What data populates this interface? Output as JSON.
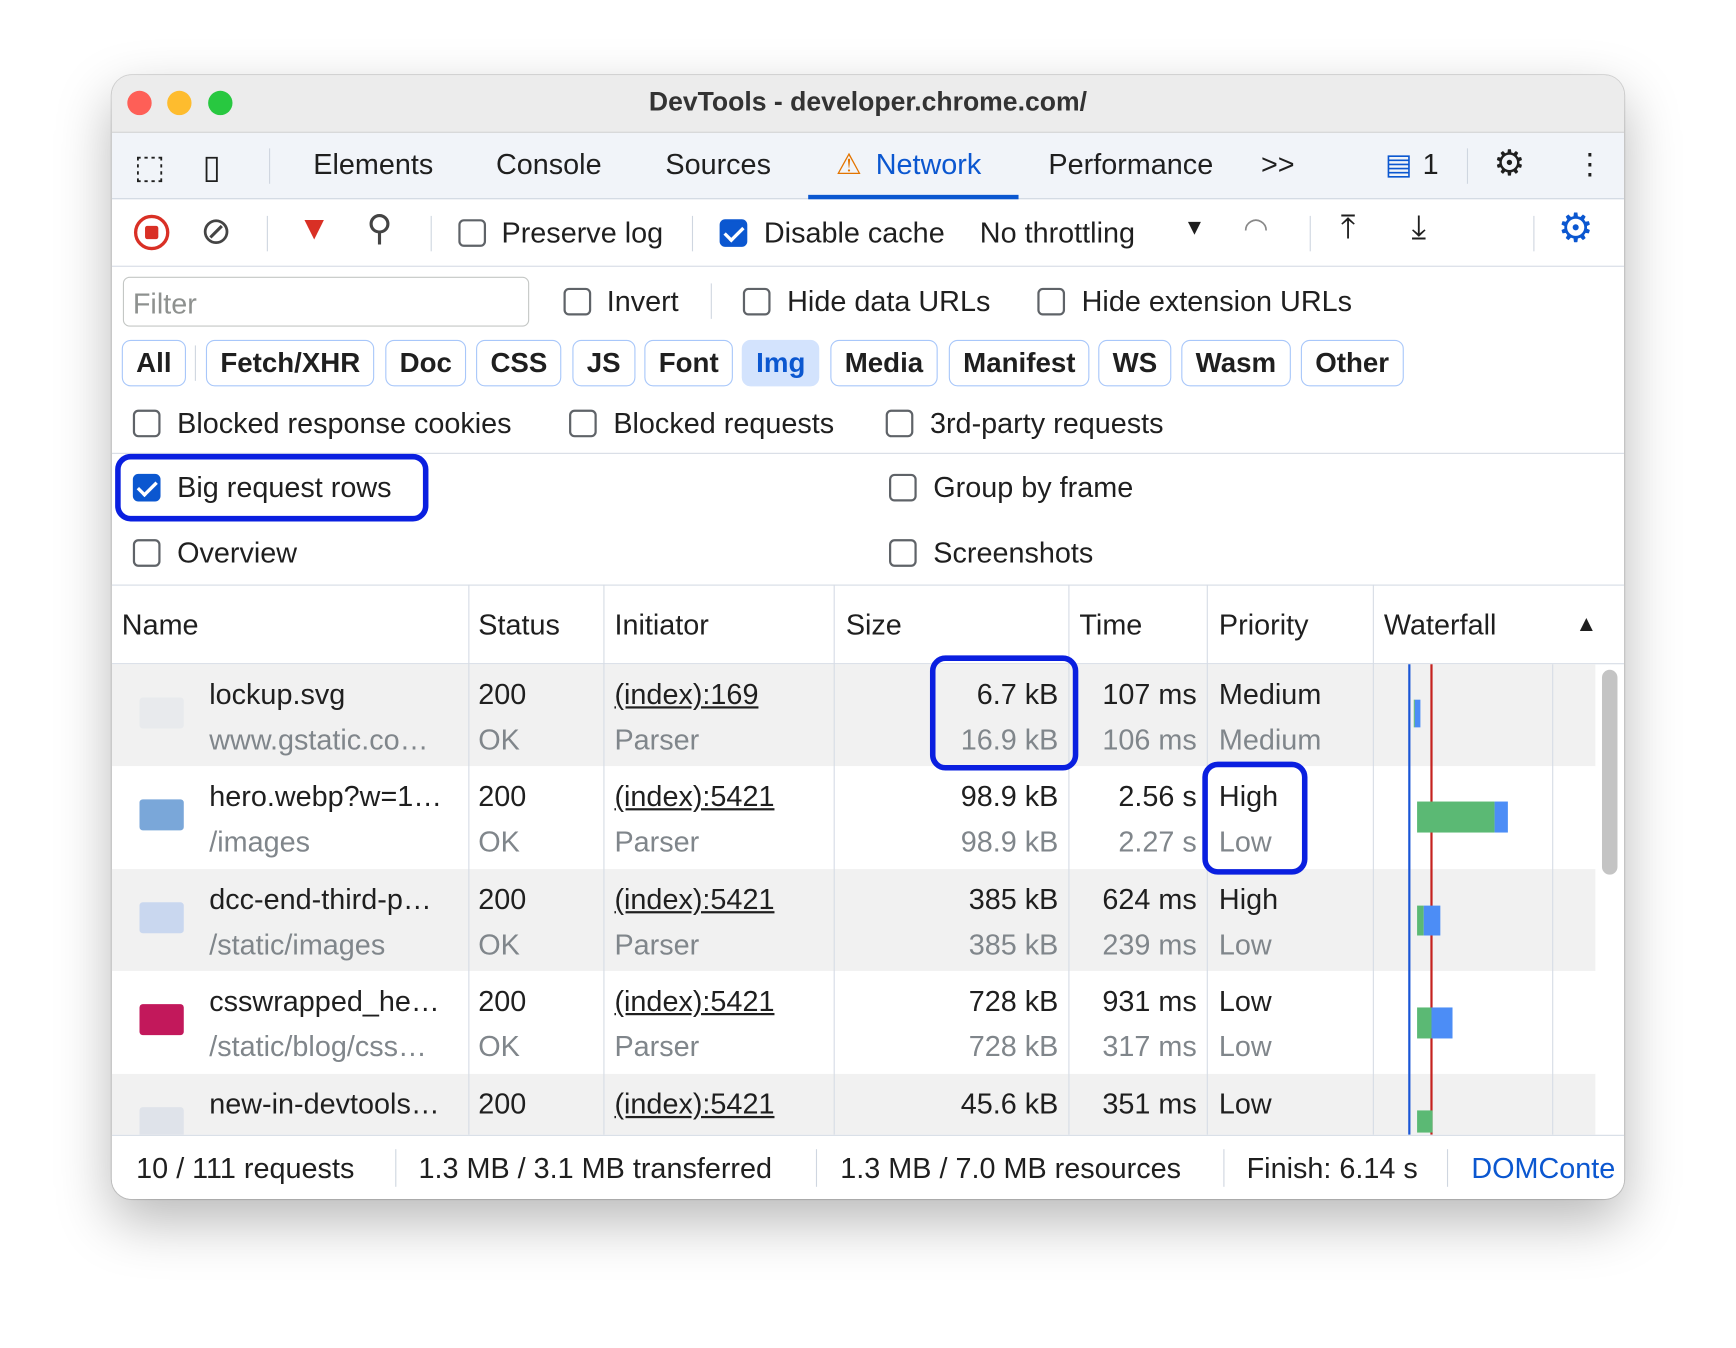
{
  "window": {
    "title": "DevTools - developer.chrome.com/"
  },
  "tabs": {
    "items": [
      "Elements",
      "Console",
      "Sources",
      "Network",
      "Performance"
    ],
    "active": "Network",
    "more": ">>",
    "issues_count": "1"
  },
  "toolbar": {
    "preserve_log": "Preserve log",
    "preserve_log_checked": false,
    "disable_cache": "Disable cache",
    "disable_cache_checked": true,
    "throttling": "No throttling"
  },
  "filter": {
    "placeholder": "Filter",
    "invert": "Invert",
    "hide_data_urls": "Hide data URLs",
    "hide_extension_urls": "Hide extension URLs"
  },
  "types": {
    "items": [
      "All",
      "Fetch/XHR",
      "Doc",
      "CSS",
      "JS",
      "Font",
      "Img",
      "Media",
      "Manifest",
      "WS",
      "Wasm",
      "Other"
    ],
    "selected": "Img"
  },
  "options": {
    "blocked_cookies": "Blocked response cookies",
    "blocked_requests": "Blocked requests",
    "third_party": "3rd-party requests",
    "big_rows": "Big request rows",
    "big_rows_checked": true,
    "group_by_frame": "Group by frame",
    "overview": "Overview",
    "screenshots": "Screenshots"
  },
  "table": {
    "headers": [
      "Name",
      "Status",
      "Initiator",
      "Size",
      "Time",
      "Priority",
      "Waterfall"
    ],
    "rows": [
      {
        "name": "lockup.svg",
        "path": "www.gstatic.co…",
        "status": "200",
        "status_text": "OK",
        "initiator": "(index):169",
        "initiator_type": "Parser",
        "size": "6.7 kB",
        "resource_size": "16.9 kB",
        "time": "107 ms",
        "latency": "106 ms",
        "priority": "Medium",
        "initial_priority": "Medium"
      },
      {
        "name": "hero.webp?w=1…",
        "path": "/images",
        "status": "200",
        "status_text": "OK",
        "initiator": "(index):5421",
        "initiator_type": "Parser",
        "size": "98.9 kB",
        "resource_size": "98.9 kB",
        "time": "2.56 s",
        "latency": "2.27 s",
        "priority": "High",
        "initial_priority": "Low"
      },
      {
        "name": "dcc-end-third-p…",
        "path": "/static/images",
        "status": "200",
        "status_text": "OK",
        "initiator": "(index):5421",
        "initiator_type": "Parser",
        "size": "385 kB",
        "resource_size": "385 kB",
        "time": "624 ms",
        "latency": "239 ms",
        "priority": "High",
        "initial_priority": "Low"
      },
      {
        "name": "csswrapped_he…",
        "path": "/static/blog/css…",
        "status": "200",
        "status_text": "OK",
        "initiator": "(index):5421",
        "initiator_type": "Parser",
        "size": "728 kB",
        "resource_size": "728 kB",
        "time": "931 ms",
        "latency": "317 ms",
        "priority": "Low",
        "initial_priority": "Low"
      },
      {
        "name": "new-in-devtools…",
        "path": "",
        "status": "200",
        "status_text": "",
        "initiator": "(index):5421",
        "initiator_type": "",
        "size": "45.6 kB",
        "resource_size": "",
        "time": "351 ms",
        "latency": "",
        "priority": "Low",
        "initial_priority": ""
      }
    ]
  },
  "statusbar": {
    "requests": "10 / 111 requests",
    "transferred": "1.3 MB / 3.1 MB transferred",
    "resources": "1.3 MB / 7.0 MB resources",
    "finish": "Finish: 6.14 s",
    "domcontent": "DOMConte"
  },
  "colors": {
    "accent": "#0b57d0",
    "highlight": "#0a1fe0",
    "waiting": "#5bb974",
    "download": "#4c8df6",
    "load_line": "#c5221f"
  }
}
